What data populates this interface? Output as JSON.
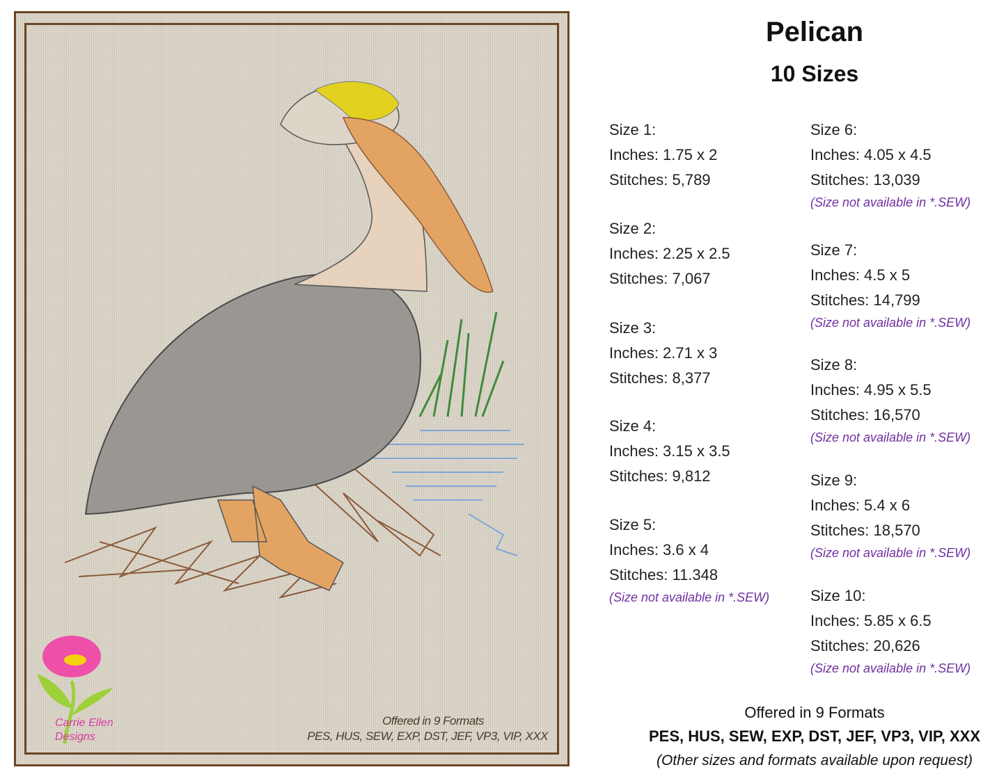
{
  "title": "Pelican",
  "subtitle": "10 Sizes",
  "sizes": [
    {
      "label": "Size 1:",
      "inches": "Inches: 1.75 x 2",
      "stitches": "Stitches: 5,789",
      "note": ""
    },
    {
      "label": "Size 2:",
      "inches": "Inches: 2.25 x 2.5",
      "stitches": "Stitches: 7,067",
      "note": ""
    },
    {
      "label": "Size 3:",
      "inches": "Inches: 2.71 x 3",
      "stitches": "Stitches: 8,377",
      "note": ""
    },
    {
      "label": "Size 4:",
      "inches": "Inches: 3.15 x 3.5",
      "stitches": "Stitches: 9,812",
      "note": ""
    },
    {
      "label": "Size 5:",
      "inches": "Inches: 3.6 x 4",
      "stitches": "Stitches: 11.348",
      "note": "(Size not available in *.SEW)"
    },
    {
      "label": "Size 6:",
      "inches": "Inches: 4.05 x 4.5",
      "stitches": "Stitches: 13,039",
      "note": "(Size not available in *.SEW)"
    },
    {
      "label": "Size 7:",
      "inches": "Inches: 4.5 x 5",
      "stitches": "Stitches: 14,799",
      "note": "(Size not available in *.SEW)"
    },
    {
      "label": "Size 8:",
      "inches": "Inches: 4.95 x 5.5",
      "stitches": "Stitches: 16,570",
      "note": "(Size not available in *.SEW)"
    },
    {
      "label": "Size 9:",
      "inches": "Inches: 5.4 x 6",
      "stitches": "Stitches: 18,570",
      "note": "(Size not available in *.SEW)"
    },
    {
      "label": "Size 10:",
      "inches": "Inches: 5.85 x 6.5",
      "stitches": "Stitches: 20,626",
      "note": "(Size not available in *.SEW)"
    }
  ],
  "footer": {
    "offered": "Offered in 9 Formats",
    "formats": "PES, HUS, SEW, EXP, DST, JEF, VP3, VIP, XXX",
    "request": "(Other sizes and formats available upon request)"
  },
  "image": {
    "offered": "Offered in 9 Formats",
    "formats": "PES, HUS, SEW, EXP, DST, JEF, VP3, VIP, XXX",
    "logo_text": "Carrie Ellen Designs"
  },
  "colors": {
    "frame": "#6b4423",
    "note": "#7030a0"
  }
}
